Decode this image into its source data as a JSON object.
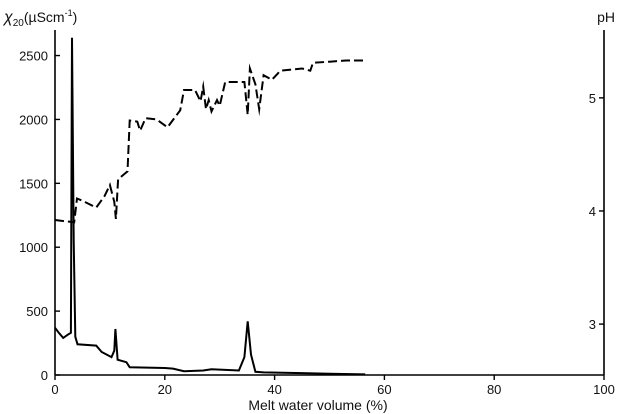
{
  "chart_data": {
    "type": "line",
    "title": "",
    "xlabel": "Melt water volume (%)",
    "ylabel": {
      "symbol": "χ",
      "sub": "20",
      "unit": "(µScm",
      "sup": "-1",
      "close": ")"
    },
    "y2label": "pH",
    "xlim": [
      0,
      100
    ],
    "ylim": [
      0,
      2700
    ],
    "y2lim": [
      2.55,
      5.6
    ],
    "xticks": [
      0,
      20,
      40,
      60,
      80,
      100
    ],
    "yticks": [
      0,
      500,
      1000,
      1500,
      2000,
      2500
    ],
    "y2ticks": [
      3,
      4,
      5
    ],
    "grid": false,
    "legend": "none",
    "series": [
      {
        "axis": "left",
        "style": "solid",
        "color": "#000000",
        "x": [
          0,
          0.7,
          1.5,
          2.5,
          2.9,
          3.1,
          3.4,
          3.7,
          4.1,
          7.5,
          8.5,
          10.3,
          10.8,
          11.0,
          11.4,
          13.0,
          13.6,
          20.0,
          21.5,
          23.5,
          27.0,
          28.5,
          33.5,
          34.5,
          35.1,
          35.7,
          36.5,
          38.0,
          45.0,
          50.0,
          56.5
        ],
        "y": [
          370,
          330,
          290,
          320,
          330,
          2640,
          1050,
          300,
          240,
          230,
          180,
          140,
          190,
          360,
          120,
          100,
          60,
          55,
          50,
          30,
          35,
          45,
          35,
          140,
          420,
          160,
          25,
          20,
          15,
          10,
          5
        ]
      },
      {
        "axis": "right",
        "style": "dashed",
        "color": "#000000",
        "x": [
          0,
          3.5,
          4.0,
          5.0,
          7.5,
          9.0,
          10.0,
          10.8,
          11.1,
          11.5,
          13.2,
          13.6,
          15.0,
          15.5,
          16.5,
          18.5,
          20.5,
          22.8,
          23.5,
          25.5,
          26.5,
          27.0,
          27.5,
          28.0,
          28.5,
          29.5,
          30.0,
          31.0,
          33.5,
          34.5,
          35.1,
          35.5,
          36.5,
          37.2,
          38.0,
          39.5,
          40.5,
          41.0,
          45.0,
          46.5,
          47.0,
          50.0,
          53.0,
          56.5
        ],
        "y": [
          3.92,
          3.9,
          4.11,
          4.09,
          4.03,
          4.13,
          4.23,
          4.08,
          3.93,
          4.28,
          4.35,
          4.8,
          4.79,
          4.71,
          4.82,
          4.81,
          4.74,
          4.89,
          5.07,
          5.07,
          4.97,
          5.1,
          4.9,
          4.98,
          4.88,
          4.98,
          4.93,
          5.14,
          5.14,
          5.14,
          4.85,
          5.26,
          5.12,
          4.9,
          5.2,
          5.16,
          5.21,
          5.24,
          5.26,
          5.24,
          5.31,
          5.32,
          5.33,
          5.33
        ]
      }
    ]
  }
}
